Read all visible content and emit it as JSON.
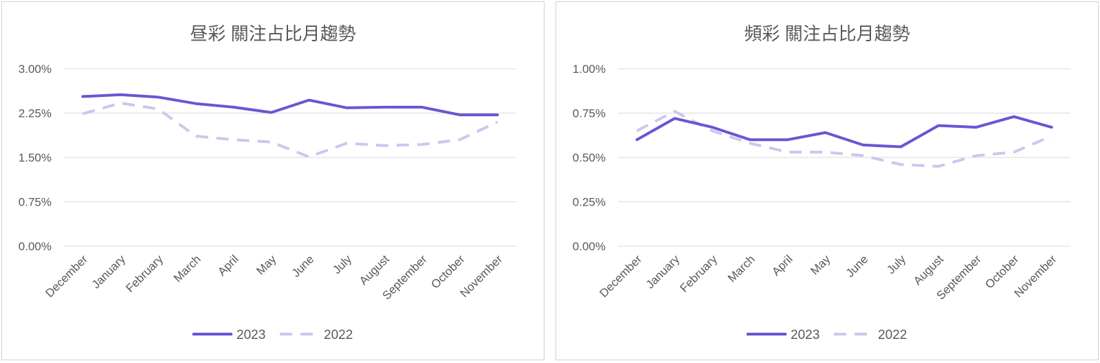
{
  "chart_data": [
    {
      "type": "line",
      "title": "昼彩 關注占比月趨勢",
      "categories": [
        "December",
        "January",
        "February",
        "March",
        "April",
        "May",
        "June",
        "July",
        "August",
        "September",
        "October",
        "November"
      ],
      "y_ticks": [
        "3.00%",
        "2.25%",
        "1.50%",
        "0.75%",
        "0.00%"
      ],
      "ylim": [
        0,
        3.0
      ],
      "grid": true,
      "legend_position": "bottom",
      "series": [
        {
          "name": "2023",
          "style": "solid",
          "color": "#6a55d3",
          "values": [
            2.53,
            2.56,
            2.52,
            2.41,
            2.35,
            2.26,
            2.47,
            2.34,
            2.35,
            2.35,
            2.22,
            2.22
          ]
        },
        {
          "name": "2022",
          "style": "dashed",
          "color": "#d3c3ec",
          "values": [
            2.24,
            2.42,
            2.32,
            1.86,
            1.8,
            1.76,
            1.51,
            1.74,
            1.7,
            1.72,
            1.8,
            2.1
          ]
        }
      ]
    },
    {
      "type": "line",
      "title": "頻彩 關注占比月趨勢",
      "categories": [
        "December",
        "January",
        "February",
        "March",
        "April",
        "May",
        "June",
        "July",
        "August",
        "September",
        "October",
        "November"
      ],
      "y_ticks": [
        "1.00%",
        "0.75%",
        "0.50%",
        "0.25%",
        "0.00%"
      ],
      "ylim": [
        0,
        1.0
      ],
      "grid": true,
      "legend_position": "bottom",
      "series": [
        {
          "name": "2023",
          "style": "solid",
          "color": "#6a55d3",
          "values": [
            0.6,
            0.72,
            0.67,
            0.6,
            0.6,
            0.64,
            0.57,
            0.56,
            0.68,
            0.67,
            0.73,
            0.67
          ]
        },
        {
          "name": "2022",
          "style": "dashed",
          "color": "#d3c3ec",
          "values": [
            0.65,
            0.76,
            0.65,
            0.58,
            0.53,
            0.53,
            0.51,
            0.46,
            0.45,
            0.51,
            0.53,
            0.62
          ]
        }
      ]
    }
  ]
}
